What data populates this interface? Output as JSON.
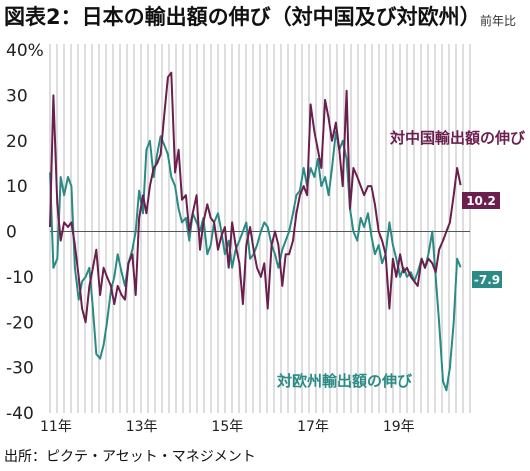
{
  "title": "図表2：日本の輸出額の伸び（対中国及び対欧州）",
  "unit_label": "前年比",
  "source": "出所：ピクテ・アセット・マネジメント",
  "colors": {
    "china": "#6b1f4e",
    "europe": "#2a8a86",
    "grid": "#bdbdbd",
    "zero": "#555555"
  },
  "chart_data": {
    "type": "line",
    "title": "図表2：日本の輸出額の伸び（対中国及び対欧州）",
    "ylabel": "前年比",
    "ylim": [
      -40,
      40
    ],
    "y_ticks": [
      "40%",
      "30",
      "20",
      "10",
      "0",
      "-10",
      "-20",
      "-30",
      "-40"
    ],
    "y_tick_values": [
      40,
      30,
      20,
      10,
      0,
      -10,
      -20,
      -30,
      -40
    ],
    "x_ticks": [
      {
        "label": "11年",
        "x": 2011.0
      },
      {
        "label": "13年",
        "x": 2013.0
      },
      {
        "label": "15年",
        "x": 2015.0
      },
      {
        "label": "17年",
        "x": 2017.0
      },
      {
        "label": "19年",
        "x": 2019.0
      }
    ],
    "xlim": [
      2011.0,
      2020.8
    ],
    "grid": true,
    "series": [
      {
        "name": "対中国輸出額の伸び",
        "end_value": "10.2",
        "points": [
          [
            2011.0,
            1
          ],
          [
            2011.08,
            30
          ],
          [
            2011.17,
            6
          ],
          [
            2011.25,
            -2
          ],
          [
            2011.33,
            2
          ],
          [
            2011.42,
            1
          ],
          [
            2011.5,
            2
          ],
          [
            2011.58,
            -3
          ],
          [
            2011.67,
            -10
          ],
          [
            2011.75,
            -17
          ],
          [
            2011.83,
            -20
          ],
          [
            2011.92,
            -12
          ],
          [
            2012.0,
            -8
          ],
          [
            2012.08,
            -4
          ],
          [
            2012.17,
            -14
          ],
          [
            2012.25,
            -8
          ],
          [
            2012.33,
            -10
          ],
          [
            2012.42,
            -12
          ],
          [
            2012.5,
            -16
          ],
          [
            2012.58,
            -12
          ],
          [
            2012.67,
            -14
          ],
          [
            2012.75,
            -15
          ],
          [
            2012.83,
            -7
          ],
          [
            2012.92,
            -5
          ],
          [
            2013.0,
            -14
          ],
          [
            2013.08,
            3
          ],
          [
            2013.17,
            8
          ],
          [
            2013.25,
            4
          ],
          [
            2013.33,
            10
          ],
          [
            2013.42,
            14
          ],
          [
            2013.5,
            15
          ],
          [
            2013.58,
            17
          ],
          [
            2013.67,
            26
          ],
          [
            2013.75,
            34
          ],
          [
            2013.83,
            35
          ],
          [
            2013.92,
            13
          ],
          [
            2014.0,
            18
          ],
          [
            2014.08,
            7
          ],
          [
            2014.17,
            8
          ],
          [
            2014.25,
            0
          ],
          [
            2014.33,
            4
          ],
          [
            2014.42,
            8
          ],
          [
            2014.5,
            -4
          ],
          [
            2014.58,
            2
          ],
          [
            2014.67,
            6
          ],
          [
            2014.75,
            3
          ],
          [
            2014.83,
            2
          ],
          [
            2014.92,
            -4
          ],
          [
            2015.0,
            -1
          ],
          [
            2015.08,
            1
          ],
          [
            2015.17,
            -8
          ],
          [
            2015.25,
            2
          ],
          [
            2015.33,
            -3
          ],
          [
            2015.42,
            -7
          ],
          [
            2015.5,
            -16
          ],
          [
            2015.58,
            -3
          ],
          [
            2015.67,
            1
          ],
          [
            2015.75,
            -4
          ],
          [
            2015.83,
            -8
          ],
          [
            2015.92,
            -10
          ],
          [
            2016.0,
            -7
          ],
          [
            2016.08,
            -17
          ],
          [
            2016.17,
            -3
          ],
          [
            2016.25,
            0
          ],
          [
            2016.33,
            -3
          ],
          [
            2016.42,
            -12
          ],
          [
            2016.5,
            -5
          ],
          [
            2016.58,
            -5
          ],
          [
            2016.67,
            -2
          ],
          [
            2016.75,
            4
          ],
          [
            2016.83,
            8
          ],
          [
            2016.92,
            10
          ],
          [
            2017.0,
            8
          ],
          [
            2017.08,
            28
          ],
          [
            2017.17,
            22
          ],
          [
            2017.25,
            18
          ],
          [
            2017.33,
            14
          ],
          [
            2017.42,
            29
          ],
          [
            2017.5,
            25
          ],
          [
            2017.58,
            20
          ],
          [
            2017.67,
            24
          ],
          [
            2017.75,
            18
          ],
          [
            2017.83,
            10
          ],
          [
            2017.92,
            31
          ],
          [
            2018.0,
            5
          ],
          [
            2018.08,
            14
          ],
          [
            2018.17,
            12
          ],
          [
            2018.25,
            10
          ],
          [
            2018.33,
            8
          ],
          [
            2018.42,
            10
          ],
          [
            2018.5,
            10
          ],
          [
            2018.58,
            6
          ],
          [
            2018.67,
            0
          ],
          [
            2018.75,
            -2
          ],
          [
            2018.83,
            -5
          ],
          [
            2018.92,
            -17
          ],
          [
            2019.0,
            -6
          ],
          [
            2019.08,
            -10
          ],
          [
            2019.17,
            -5
          ],
          [
            2019.25,
            -9
          ],
          [
            2019.33,
            -8
          ],
          [
            2019.42,
            -10
          ],
          [
            2019.5,
            -11
          ],
          [
            2019.58,
            -12
          ],
          [
            2019.67,
            -6
          ],
          [
            2019.75,
            -8
          ],
          [
            2019.83,
            -6
          ],
          [
            2019.92,
            -7
          ],
          [
            2020.0,
            -9
          ],
          [
            2020.08,
            -4
          ],
          [
            2020.17,
            -2
          ],
          [
            2020.25,
            0
          ],
          [
            2020.33,
            2
          ],
          [
            2020.42,
            8
          ],
          [
            2020.5,
            14
          ],
          [
            2020.58,
            10.2
          ]
        ]
      },
      {
        "name": "対欧州輸出額の伸び",
        "end_value": "-7.9",
        "points": [
          [
            2011.0,
            13
          ],
          [
            2011.08,
            -8
          ],
          [
            2011.17,
            -6
          ],
          [
            2011.25,
            12
          ],
          [
            2011.33,
            8
          ],
          [
            2011.42,
            12
          ],
          [
            2011.5,
            10
          ],
          [
            2011.58,
            -8
          ],
          [
            2011.67,
            -15
          ],
          [
            2011.75,
            -11
          ],
          [
            2011.83,
            -10
          ],
          [
            2011.92,
            -8
          ],
          [
            2012.0,
            -17
          ],
          [
            2012.08,
            -27
          ],
          [
            2012.17,
            -28
          ],
          [
            2012.25,
            -25
          ],
          [
            2012.33,
            -20
          ],
          [
            2012.42,
            -13
          ],
          [
            2012.5,
            -10
          ],
          [
            2012.58,
            -5
          ],
          [
            2012.67,
            -9
          ],
          [
            2012.75,
            -12
          ],
          [
            2012.83,
            -7
          ],
          [
            2012.92,
            -4
          ],
          [
            2013.0,
            0
          ],
          [
            2013.08,
            9
          ],
          [
            2013.17,
            4
          ],
          [
            2013.25,
            18
          ],
          [
            2013.33,
            20
          ],
          [
            2013.42,
            12
          ],
          [
            2013.5,
            17
          ],
          [
            2013.58,
            21
          ],
          [
            2013.67,
            19
          ],
          [
            2013.75,
            17
          ],
          [
            2013.83,
            12
          ],
          [
            2013.92,
            10
          ],
          [
            2014.0,
            5
          ],
          [
            2014.08,
            2
          ],
          [
            2014.17,
            3
          ],
          [
            2014.25,
            -2
          ],
          [
            2014.33,
            4
          ],
          [
            2014.42,
            2
          ],
          [
            2014.5,
            0
          ],
          [
            2014.58,
            3
          ],
          [
            2014.67,
            -5
          ],
          [
            2014.75,
            -3
          ],
          [
            2014.83,
            2
          ],
          [
            2014.92,
            4
          ],
          [
            2015.0,
            0
          ],
          [
            2015.08,
            -5
          ],
          [
            2015.17,
            -2
          ],
          [
            2015.25,
            -8
          ],
          [
            2015.33,
            -4
          ],
          [
            2015.42,
            -2
          ],
          [
            2015.5,
            0
          ],
          [
            2015.58,
            2
          ],
          [
            2015.67,
            -6
          ],
          [
            2015.75,
            -5
          ],
          [
            2015.83,
            -3
          ],
          [
            2015.92,
            0
          ],
          [
            2016.0,
            2
          ],
          [
            2016.08,
            1
          ],
          [
            2016.17,
            -3
          ],
          [
            2016.25,
            -5
          ],
          [
            2016.33,
            -8
          ],
          [
            2016.42,
            -4
          ],
          [
            2016.5,
            -2
          ],
          [
            2016.58,
            0
          ],
          [
            2016.67,
            4
          ],
          [
            2016.75,
            8
          ],
          [
            2016.83,
            9
          ],
          [
            2016.92,
            14
          ],
          [
            2017.0,
            10
          ],
          [
            2017.08,
            14
          ],
          [
            2017.17,
            12
          ],
          [
            2017.25,
            16
          ],
          [
            2017.33,
            10
          ],
          [
            2017.42,
            12
          ],
          [
            2017.5,
            8
          ],
          [
            2017.58,
            14
          ],
          [
            2017.67,
            22
          ],
          [
            2017.75,
            18
          ],
          [
            2017.83,
            20
          ],
          [
            2017.92,
            16
          ],
          [
            2018.0,
            5
          ],
          [
            2018.08,
            0
          ],
          [
            2018.17,
            -2
          ],
          [
            2018.25,
            3
          ],
          [
            2018.33,
            1
          ],
          [
            2018.42,
            4
          ],
          [
            2018.5,
            -1
          ],
          [
            2018.58,
            -5
          ],
          [
            2018.67,
            -3
          ],
          [
            2018.75,
            -7
          ],
          [
            2018.83,
            -5
          ],
          [
            2018.92,
            2
          ],
          [
            2019.0,
            -3
          ],
          [
            2019.08,
            -6
          ],
          [
            2019.17,
            -10
          ],
          [
            2019.25,
            -8
          ],
          [
            2019.33,
            -10
          ],
          [
            2019.42,
            -9
          ],
          [
            2019.5,
            -11
          ],
          [
            2019.58,
            -9
          ],
          [
            2019.67,
            -6
          ],
          [
            2019.75,
            -8
          ],
          [
            2019.83,
            -5
          ],
          [
            2019.92,
            0
          ],
          [
            2020.0,
            -10
          ],
          [
            2020.08,
            -20
          ],
          [
            2020.17,
            -33
          ],
          [
            2020.25,
            -35
          ],
          [
            2020.33,
            -30
          ],
          [
            2020.42,
            -20
          ],
          [
            2020.5,
            -6
          ],
          [
            2020.58,
            -7.9
          ]
        ]
      }
    ]
  }
}
